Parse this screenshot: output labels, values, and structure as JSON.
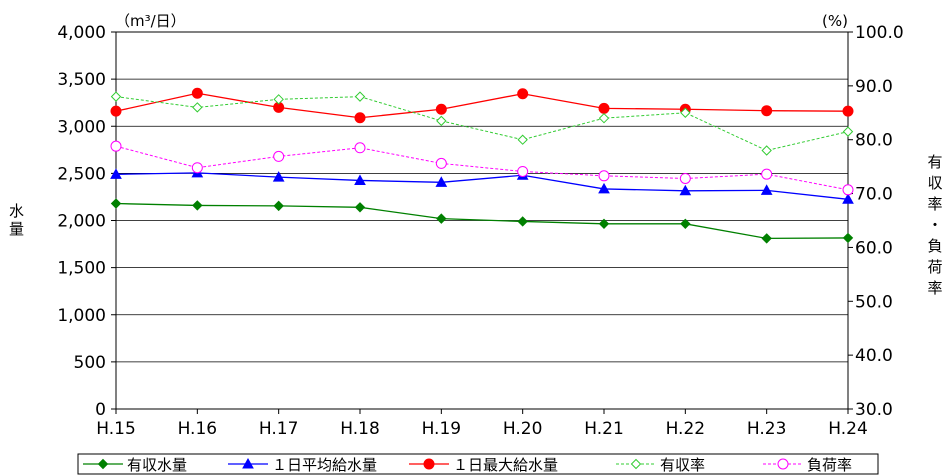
{
  "chart_data": {
    "type": "line",
    "categories": [
      "H.15",
      "H.16",
      "H.17",
      "H.18",
      "H.19",
      "H.20",
      "H.21",
      "H.22",
      "H.23",
      "H.24"
    ],
    "left_axis": {
      "label": "水量",
      "unit": "（m³/日）",
      "range": [
        0,
        4000
      ],
      "ticks": [
        0,
        500,
        1000,
        1500,
        2000,
        2500,
        3000,
        3500,
        4000
      ],
      "tick_labels": [
        "0",
        "500",
        "1,000",
        "1,500",
        "2,000",
        "2,500",
        "3,000",
        "3,500",
        "4,000"
      ]
    },
    "right_axis": {
      "label": "有収率・負荷率",
      "unit": "(%)",
      "range": [
        30,
        100
      ],
      "ticks": [
        30,
        40,
        50,
        60,
        70,
        80,
        90,
        100
      ],
      "tick_labels": [
        "30.0",
        "40.0",
        "50.0",
        "60.0",
        "70.0",
        "80.0",
        "90.0",
        "100.0"
      ]
    },
    "grid": true,
    "legend_position": "bottom",
    "series": [
      {
        "name": "有収水量",
        "axis": "left",
        "color": "#008000",
        "marker": "diamond-filled",
        "dashed": false,
        "values": [
          2180,
          2160,
          2155,
          2140,
          2020,
          1990,
          1965,
          1965,
          1810,
          1815
        ]
      },
      {
        "name": "１日平均給水量",
        "axis": "left",
        "color": "#0000ff",
        "marker": "triangle-filled",
        "dashed": false,
        "values": [
          2490,
          2505,
          2460,
          2425,
          2405,
          2480,
          2335,
          2315,
          2320,
          2225
        ]
      },
      {
        "name": "１日最大給水量",
        "axis": "left",
        "color": "#ff0000",
        "marker": "circle-filled",
        "dashed": false,
        "values": [
          3160,
          3350,
          3200,
          3090,
          3180,
          3345,
          3190,
          3180,
          3165,
          3160
        ]
      },
      {
        "name": "有収率",
        "axis": "right",
        "color": "#33cc33",
        "marker": "diamond-open",
        "dashed": true,
        "values": [
          88.0,
          86.0,
          87.5,
          88.0,
          83.5,
          80.0,
          84.0,
          85.0,
          78.0,
          81.5
        ]
      },
      {
        "name": "負荷率",
        "axis": "right",
        "color": "#ff00ff",
        "marker": "circle-open",
        "dashed": true,
        "values": [
          78.8,
          74.8,
          76.9,
          78.5,
          75.6,
          74.1,
          73.3,
          72.8,
          73.6,
          70.7
        ]
      }
    ]
  }
}
